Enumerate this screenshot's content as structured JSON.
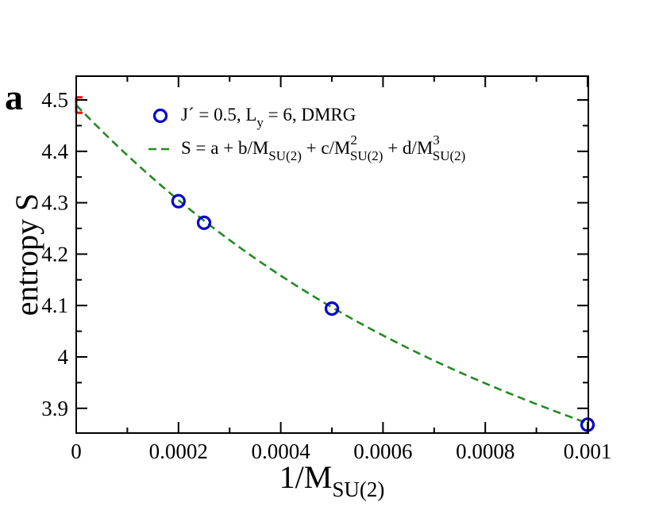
{
  "chart_data": {
    "type": "scatter",
    "panel_label": "a",
    "xlabel": "1/M",
    "xlabel_sub": "SU(2)",
    "ylabel": "entropy S",
    "xlim": [
      0,
      0.001
    ],
    "ylim": [
      3.85,
      4.53
    ],
    "x_ticks": [
      0,
      0.0002,
      0.0004,
      0.0006,
      0.0008,
      0.001
    ],
    "x_tick_labels": [
      "0",
      "0.0002",
      "0.0004",
      "0.0006",
      "0.0008",
      "0.001"
    ],
    "y_ticks": [
      3.9,
      4.0,
      4.1,
      4.2,
      4.3,
      4.4,
      4.5
    ],
    "y_tick_labels": [
      "3.9",
      "4",
      "4.1",
      "4.2",
      "4.3",
      "4.4",
      "4.5"
    ],
    "series": [
      {
        "name": "J´ = 0.5, L_y = 6, DMRG",
        "kind": "markers",
        "color": "#0000cc",
        "x": [
          0.0002,
          0.00025,
          0.0005,
          0.001
        ],
        "y": [
          4.303,
          4.261,
          4.094,
          3.868
        ]
      },
      {
        "name": "S = a + b/M_SU(2) + c/M^2_SU(2) + d/M^3_SU(2)",
        "kind": "fit",
        "color": "#228b22",
        "coefficients": {
          "a": 4.49,
          "b": -1032,
          "c": 568000,
          "d": -155000000
        }
      }
    ],
    "extrapolation": {
      "color": "#ff0000",
      "x": 0,
      "y_upper": 4.505,
      "y_lower": 4.475
    },
    "legend": [
      {
        "marker": "circle",
        "parts": [
          {
            "t": "J´ = 0.5, L"
          },
          {
            "t": "y",
            "sub": true
          },
          {
            "t": " = 6, DMRG"
          }
        ]
      },
      {
        "marker": "dash",
        "parts": [
          {
            "t": "S = a + b/M"
          },
          {
            "t": "SU(2)",
            "sub": true
          },
          {
            "t": " + c/M"
          },
          {
            "t": "2",
            "sup": true
          },
          {
            "t": "SU(2)",
            "sub": true
          },
          {
            "t": " + d/M"
          },
          {
            "t": "3",
            "sup": true
          },
          {
            "t": "SU(2)",
            "sub": true
          }
        ]
      }
    ],
    "legend_position": "top-right"
  }
}
